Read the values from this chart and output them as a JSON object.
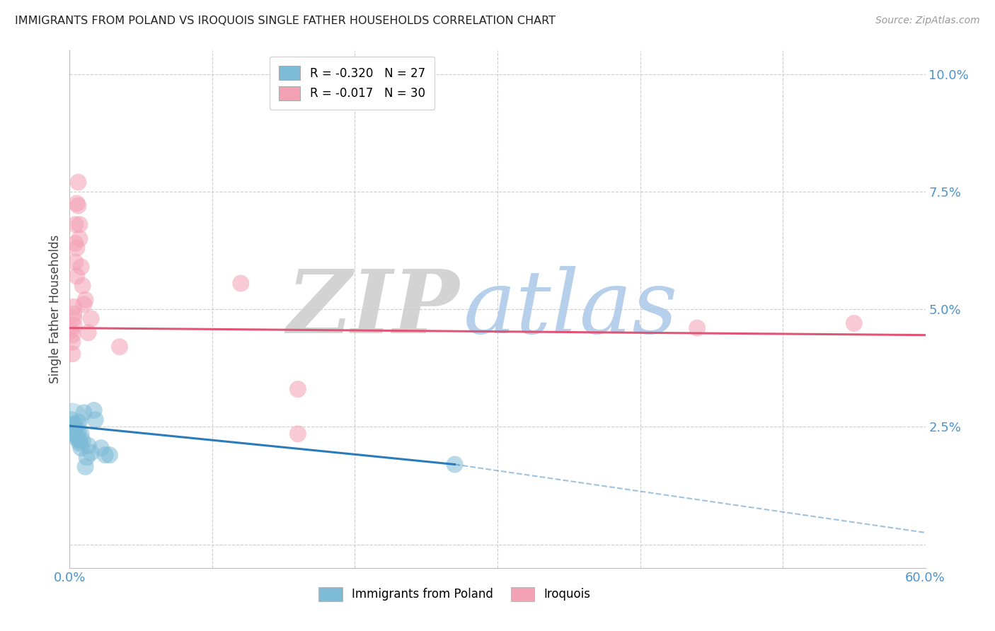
{
  "title": "IMMIGRANTS FROM POLAND VS IROQUOIS SINGLE FATHER HOUSEHOLDS CORRELATION CHART",
  "source": "Source: ZipAtlas.com",
  "ylabel": "Single Father Households",
  "xlim": [
    0.0,
    0.6
  ],
  "ylim": [
    -0.005,
    0.105
  ],
  "yticks": [
    0.0,
    0.025,
    0.05,
    0.075,
    0.1
  ],
  "ytick_labels": [
    "",
    "2.5%",
    "5.0%",
    "7.5%",
    "10.0%"
  ],
  "xticks": [
    0.0,
    0.1,
    0.2,
    0.3,
    0.4,
    0.5,
    0.6
  ],
  "xtick_labels": [
    "0.0%",
    "",
    "",
    "",
    "",
    "",
    "60.0%"
  ],
  "legend1_entries": [
    {
      "label": "R = -0.320   N = 27",
      "color": "#8bbcd4"
    },
    {
      "label": "R = -0.017   N = 30",
      "color": "#f4a0b5"
    }
  ],
  "blue_scatter": [
    [
      0.001,
      0.0265
    ],
    [
      0.002,
      0.0255
    ],
    [
      0.002,
      0.024
    ],
    [
      0.003,
      0.025
    ],
    [
      0.003,
      0.0235
    ],
    [
      0.004,
      0.0255
    ],
    [
      0.004,
      0.0245
    ],
    [
      0.005,
      0.023
    ],
    [
      0.005,
      0.0225
    ],
    [
      0.006,
      0.024
    ],
    [
      0.006,
      0.026
    ],
    [
      0.007,
      0.0215
    ],
    [
      0.007,
      0.022
    ],
    [
      0.008,
      0.0205
    ],
    [
      0.008,
      0.0235
    ],
    [
      0.009,
      0.022
    ],
    [
      0.01,
      0.028
    ],
    [
      0.011,
      0.0165
    ],
    [
      0.012,
      0.0185
    ],
    [
      0.013,
      0.021
    ],
    [
      0.015,
      0.0195
    ],
    [
      0.017,
      0.0285
    ],
    [
      0.018,
      0.0265
    ],
    [
      0.022,
      0.0205
    ],
    [
      0.025,
      0.019
    ],
    [
      0.028,
      0.019
    ],
    [
      0.27,
      0.017
    ]
  ],
  "blue_large_dot": [
    0.001,
    0.0265
  ],
  "pink_scatter": [
    [
      0.001,
      0.0455
    ],
    [
      0.002,
      0.0445
    ],
    [
      0.002,
      0.043
    ],
    [
      0.002,
      0.0405
    ],
    [
      0.003,
      0.049
    ],
    [
      0.003,
      0.048
    ],
    [
      0.003,
      0.0465
    ],
    [
      0.003,
      0.0505
    ],
    [
      0.004,
      0.06
    ],
    [
      0.004,
      0.064
    ],
    [
      0.004,
      0.068
    ],
    [
      0.005,
      0.063
    ],
    [
      0.005,
      0.057
    ],
    [
      0.005,
      0.0725
    ],
    [
      0.006,
      0.077
    ],
    [
      0.006,
      0.072
    ],
    [
      0.007,
      0.068
    ],
    [
      0.007,
      0.065
    ],
    [
      0.008,
      0.059
    ],
    [
      0.009,
      0.055
    ],
    [
      0.01,
      0.051
    ],
    [
      0.011,
      0.052
    ],
    [
      0.013,
      0.045
    ],
    [
      0.015,
      0.048
    ],
    [
      0.035,
      0.042
    ],
    [
      0.12,
      0.0555
    ],
    [
      0.16,
      0.033
    ],
    [
      0.16,
      0.0235
    ],
    [
      0.44,
      0.046
    ],
    [
      0.55,
      0.047
    ]
  ],
  "blue_line_solid": {
    "x1": 0.0,
    "y1": 0.0252,
    "x2": 0.27,
    "y2": 0.017
  },
  "blue_line_dashed": {
    "x1": 0.27,
    "y1": 0.017,
    "x2": 0.6,
    "y2": 0.0025
  },
  "pink_line": {
    "x1": 0.0,
    "y1": 0.046,
    "x2": 0.6,
    "y2": 0.0445
  },
  "blue_color": "#7dbbd6",
  "pink_color": "#f4a0b5",
  "blue_line_color": "#2b7bba",
  "pink_line_color": "#e05575",
  "background_color": "#ffffff",
  "grid_color": "#c8c8c8",
  "title_color": "#222222",
  "axis_label_color": "#444444",
  "tick_color": "#4d94d0",
  "source_color": "#999999",
  "zip_color": "#cccccc",
  "atlas_color": "#aac8e8"
}
